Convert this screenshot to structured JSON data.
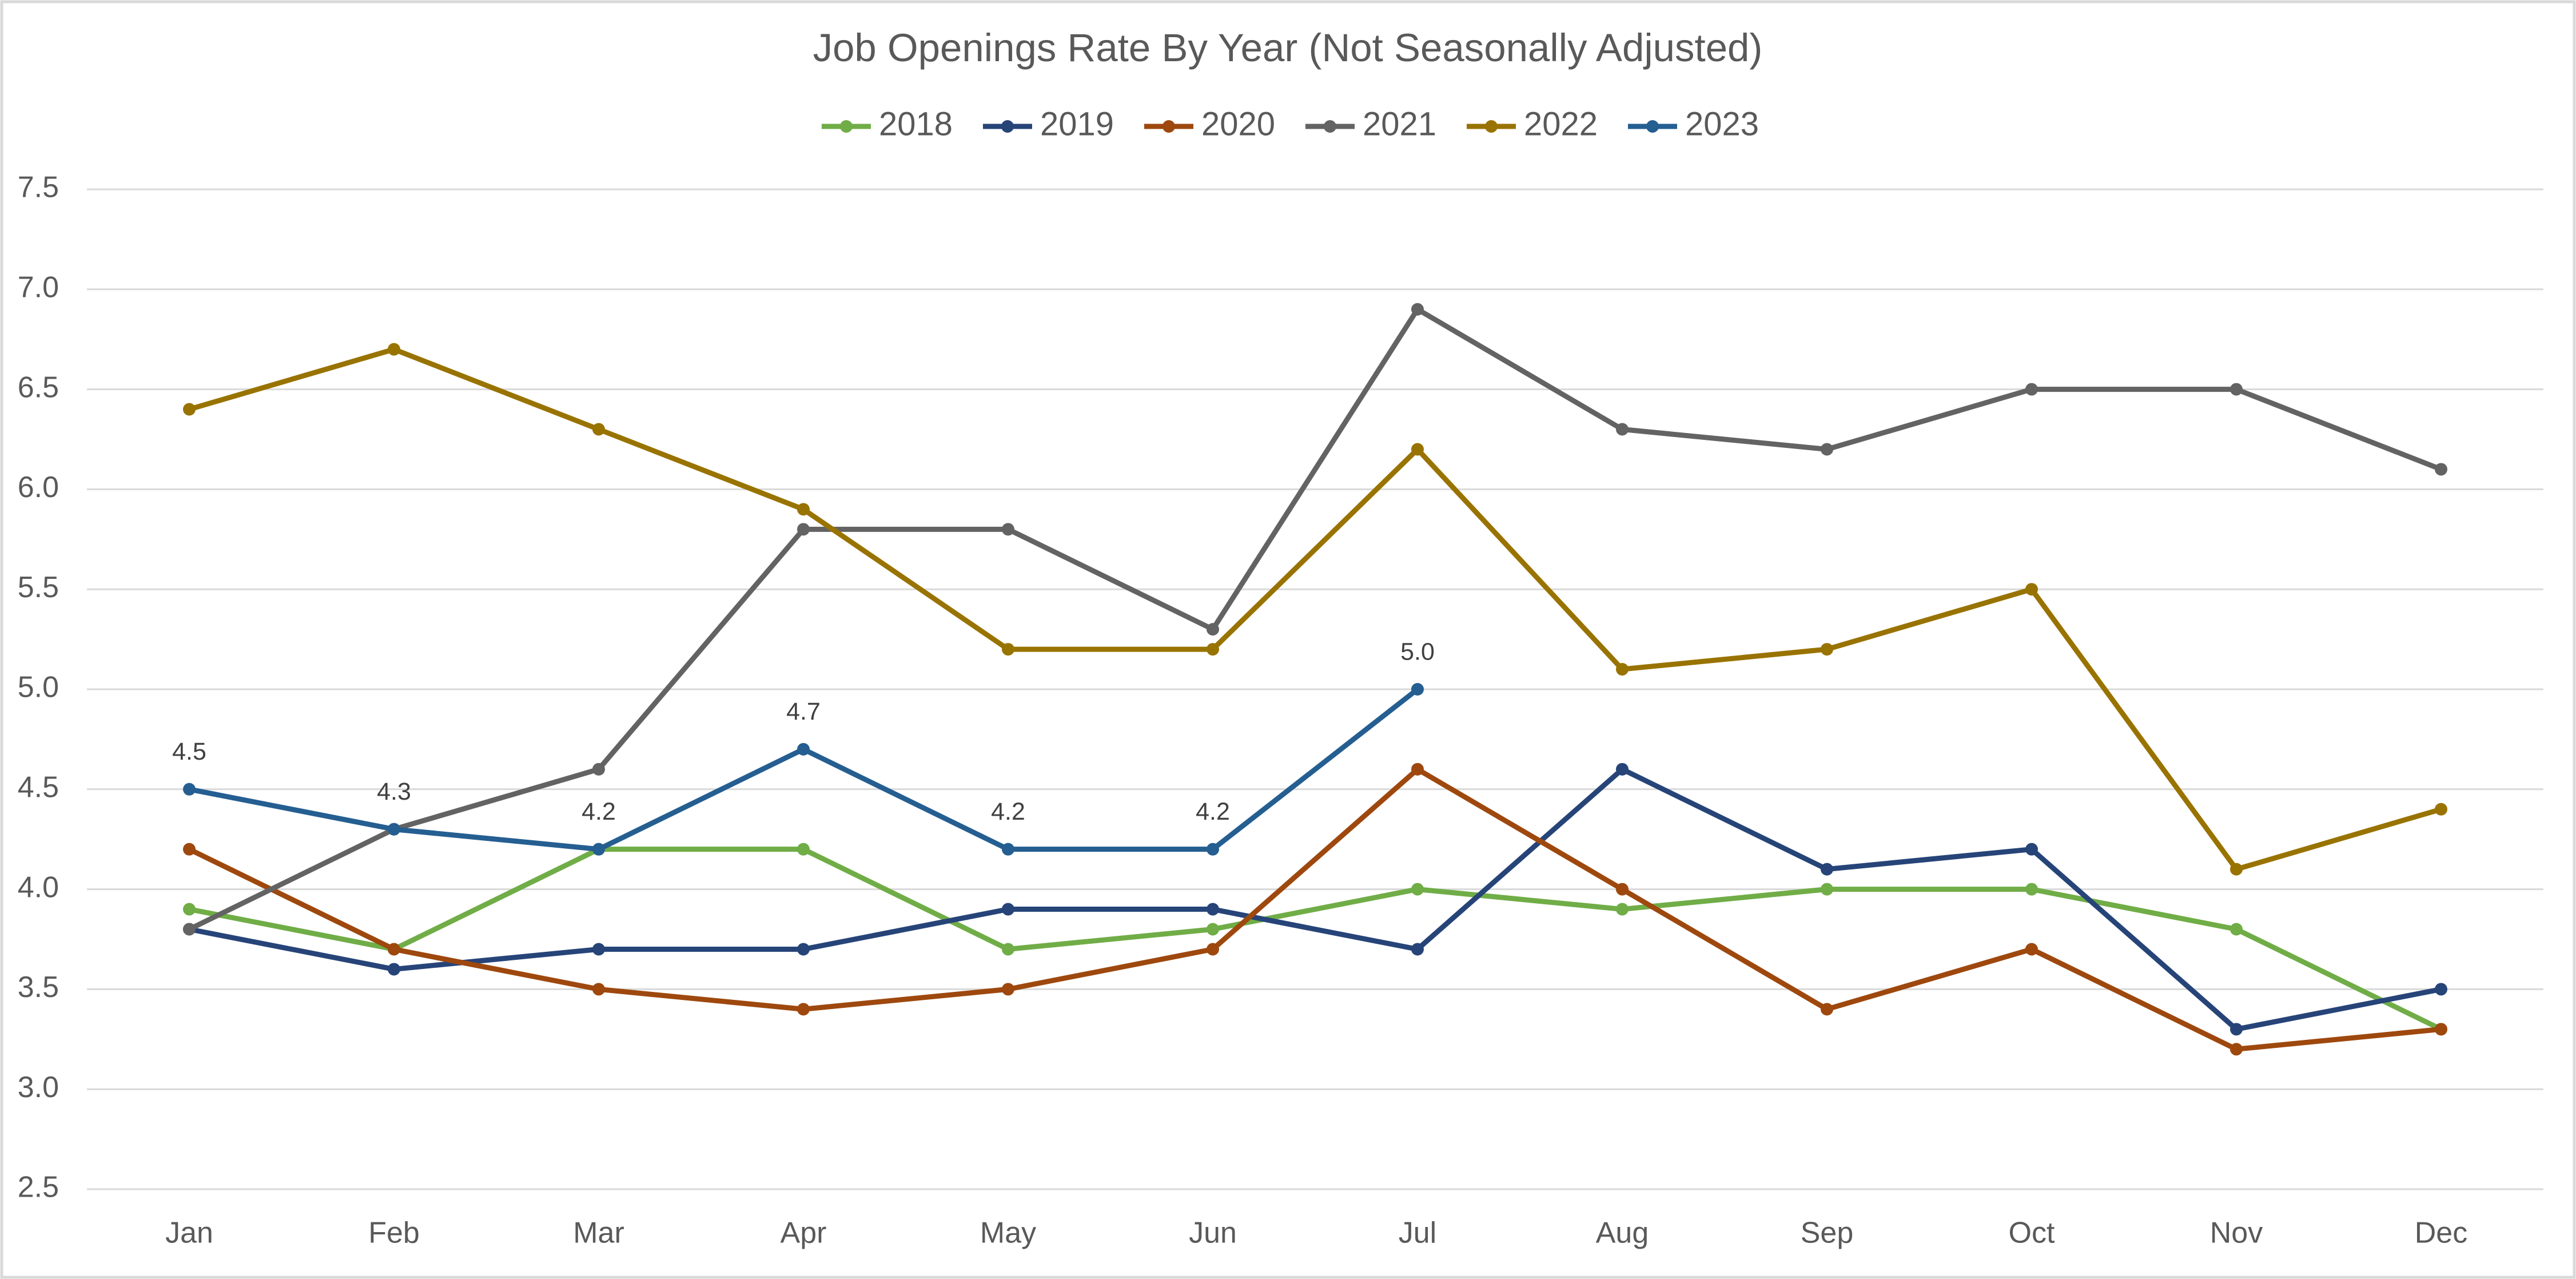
{
  "chart_data": {
    "type": "line",
    "title": "Job Openings Rate By Year (Not Seasonally Adjusted)",
    "categories": [
      "Jan",
      "Feb",
      "Mar",
      "Apr",
      "May",
      "Jun",
      "Jul",
      "Aug",
      "Sep",
      "Oct",
      "Nov",
      "Dec"
    ],
    "series": [
      {
        "name": "2018",
        "color": "#70ad47",
        "values": [
          3.9,
          3.7,
          4.2,
          4.2,
          3.7,
          3.8,
          4.0,
          3.9,
          4.0,
          4.0,
          3.8,
          3.3
        ]
      },
      {
        "name": "2019",
        "color": "#264478",
        "values": [
          3.8,
          3.6,
          3.7,
          3.7,
          3.9,
          3.9,
          3.7,
          4.6,
          4.1,
          4.2,
          3.3,
          3.5
        ]
      },
      {
        "name": "2020",
        "color": "#9e480e",
        "values": [
          4.2,
          3.7,
          3.5,
          3.4,
          3.5,
          3.7,
          4.6,
          4.0,
          3.4,
          3.7,
          3.2,
          3.3
        ]
      },
      {
        "name": "2021",
        "color": "#636363",
        "values": [
          3.8,
          4.3,
          4.6,
          5.8,
          5.8,
          5.3,
          6.9,
          6.3,
          6.2,
          6.5,
          6.5,
          6.1
        ]
      },
      {
        "name": "2022",
        "color": "#997300",
        "values": [
          6.4,
          6.7,
          6.3,
          5.9,
          5.2,
          5.2,
          6.2,
          5.1,
          5.2,
          5.5,
          4.1,
          4.4
        ]
      },
      {
        "name": "2023",
        "color": "#255e91",
        "values": [
          4.5,
          4.3,
          4.2,
          4.7,
          4.2,
          4.2,
          5.0,
          null,
          null,
          null,
          null,
          null
        ],
        "value_labels": [
          "4.5",
          "4.3",
          "4.2",
          "4.7",
          "4.2",
          "4.2",
          "5.0",
          null,
          null,
          null,
          null,
          null
        ]
      }
    ],
    "ylim": [
      2.5,
      7.5
    ],
    "yticks": [
      2.5,
      {
        "value": 3,
        "label": "3.0"
      },
      3.5,
      {
        "value": 4,
        "label": "4.0"
      },
      4.5,
      {
        "value": 5,
        "label": "5.0"
      },
      5.5,
      {
        "value": 6,
        "label": "6.0"
      },
      6.5,
      {
        "value": 7,
        "label": "7.0"
      },
      7.5
    ],
    "grid": true,
    "legend": "top"
  }
}
